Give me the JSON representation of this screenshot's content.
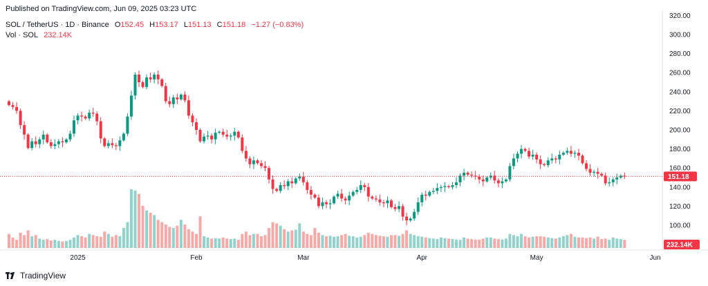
{
  "header": {
    "published": "Published on TradingView.com, Jun 09, 2025 03:23 UTC"
  },
  "legend": {
    "symbol": "SOL / TetherUS · 1D · Binance",
    "open_label": "O",
    "open": "152.45",
    "high_label": "H",
    "high": "153.17",
    "low_label": "L",
    "low": "151.13",
    "close_label": "C",
    "close": "151.18",
    "change": "−1.27 (−0.83%)",
    "volume_label": "Vol · SOL",
    "volume": "232.14K"
  },
  "footer": {
    "brand": "TradingView"
  },
  "colors": {
    "up": "#089981",
    "down": "#f23645",
    "up_vol": "#92d2cc",
    "down_vol": "#f7a9a7",
    "price_line": "#f23645"
  },
  "chart_data": {
    "type": "candlestick",
    "ylim": [
      80,
      320
    ],
    "y_ticks": [
      100,
      120,
      140,
      160,
      180,
      200,
      220,
      240,
      260,
      280,
      300,
      320
    ],
    "x_ticks": [
      {
        "label": "2025",
        "index": 18
      },
      {
        "label": "Feb",
        "index": 49
      },
      {
        "label": "Mar",
        "index": 77
      },
      {
        "label": "Apr",
        "index": 108
      },
      {
        "label": "May",
        "index": 138
      },
      {
        "label": "Jun",
        "index": 169
      }
    ],
    "last_price_label": "151.18",
    "last_price": 151.18,
    "last_volume_label": "232.14K",
    "close": [
      226,
      224,
      220,
      205,
      195,
      181,
      188,
      185,
      190,
      195,
      187,
      183,
      185,
      188,
      187,
      190,
      196,
      210,
      215,
      214,
      212,
      218,
      217,
      209,
      191,
      183,
      186,
      184,
      183,
      189,
      196,
      214,
      236,
      258,
      250,
      245,
      255,
      253,
      258,
      253,
      246,
      230,
      227,
      234,
      232,
      237,
      231,
      215,
      208,
      200,
      188,
      193,
      194,
      190,
      197,
      198,
      195,
      193,
      194,
      198,
      192,
      178,
      170,
      164,
      168,
      165,
      162,
      160,
      148,
      138,
      136,
      142,
      141,
      146,
      144,
      149,
      151,
      145,
      137,
      132,
      129,
      120,
      124,
      122,
      123,
      130,
      133,
      128,
      126,
      131,
      135,
      137,
      142,
      140,
      130,
      128,
      127,
      124,
      123,
      126,
      119,
      117,
      120,
      109,
      105,
      107,
      114,
      124,
      132,
      131,
      135,
      136,
      139,
      140,
      141,
      140,
      142,
      145,
      152,
      155,
      153,
      152,
      151,
      148,
      146,
      150,
      152,
      147,
      144,
      146,
      148,
      162,
      170,
      175,
      180,
      178,
      172,
      174,
      169,
      164,
      163,
      168,
      170,
      169,
      174,
      176,
      178,
      175,
      176,
      173,
      165,
      159,
      155,
      156,
      154,
      152,
      144,
      145,
      148,
      150,
      152,
      151
    ],
    "volume": [
      60,
      45,
      35,
      65,
      55,
      75,
      50,
      55,
      40,
      35,
      38,
      32,
      35,
      30,
      28,
      30,
      35,
      45,
      55,
      50,
      45,
      60,
      55,
      50,
      48,
      70,
      60,
      48,
      55,
      50,
      85,
      110,
      250,
      245,
      230,
      180,
      160,
      150,
      140,
      120,
      110,
      100,
      90,
      85,
      95,
      120,
      100,
      80,
      70,
      60,
      135,
      50,
      45,
      40,
      42,
      40,
      45,
      40,
      38,
      40,
      35,
      60,
      70,
      55,
      60,
      60,
      50,
      55,
      85,
      110,
      105,
      95,
      80,
      70,
      75,
      78,
      105,
      70,
      60,
      55,
      85,
      65,
      55,
      50,
      52,
      48,
      50,
      55,
      60,
      52,
      50,
      45,
      48,
      55,
      65,
      60,
      55,
      52,
      50,
      48,
      55,
      55,
      52,
      60,
      75,
      60,
      55,
      50,
      48,
      45,
      42,
      40,
      38,
      45,
      42,
      40,
      38,
      36,
      35,
      45,
      40,
      38,
      36,
      35,
      40,
      45,
      45,
      40,
      38,
      36,
      40,
      60,
      55,
      50,
      60,
      50,
      45,
      48,
      50,
      50,
      48,
      45,
      42,
      40,
      45,
      50,
      55,
      60,
      48,
      45,
      45,
      42,
      45,
      40,
      48,
      38,
      40,
      35,
      45,
      40,
      38,
      35
    ]
  }
}
